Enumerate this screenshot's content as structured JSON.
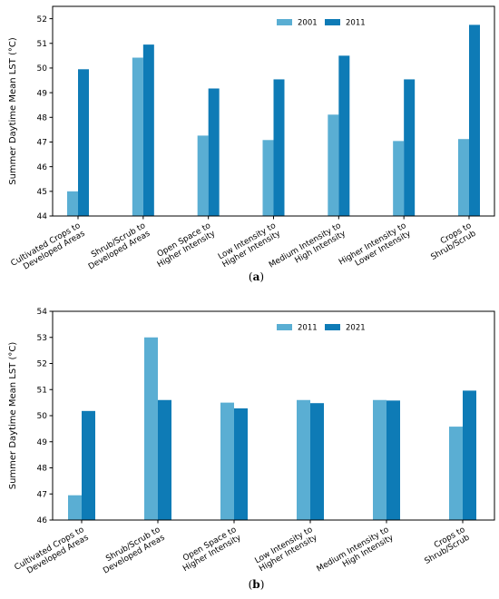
{
  "chart_data": [
    {
      "type": "bar",
      "panel_label": "a",
      "categories": [
        "Cultivated Crops to\nDeveloped Areas",
        "Shrub/Scrub to\nDeveloped Areas",
        "Open Space to\nHigher Intensity",
        "Low Intensity to\nHigher Intensity",
        "Medium Intensity to\nHigh Intensity",
        "Higher Intensity to\nLower Intensity",
        "Crops to\nShrub/Scrub"
      ],
      "series": [
        {
          "name": "2001",
          "color": "#5aaed3",
          "values": [
            45.0,
            50.42,
            47.26,
            47.08,
            48.11,
            47.04,
            47.12
          ]
        },
        {
          "name": "2011",
          "color": "#0e7bb6",
          "values": [
            49.95,
            50.95,
            49.17,
            49.54,
            50.5,
            49.54,
            51.75
          ]
        }
      ],
      "xlabel": "",
      "ylabel": "Summer Daytime Mean LST (°C)",
      "ylim": [
        44,
        52.5
      ],
      "yticks": [
        44,
        45,
        46,
        47,
        48,
        49,
        50,
        51,
        52
      ],
      "legend_position": "top-right",
      "grid": false
    },
    {
      "type": "bar",
      "panel_label": "b",
      "categories": [
        "Cultivated Crops to\nDeveloped Areas",
        "Shrub/Scrub to\nDeveloped Areas",
        "Open Space to\nHigher Intensity",
        "Low Intensity to\nHigher Intensity",
        "Medium Intensity to\nHigh Intensity",
        "Crops to\nShrub/Scrub"
      ],
      "series": [
        {
          "name": "2011",
          "color": "#5aaed3",
          "values": [
            46.95,
            53.0,
            50.5,
            50.6,
            50.6,
            49.58
          ]
        },
        {
          "name": "2021",
          "color": "#0e7bb6",
          "values": [
            50.18,
            50.6,
            50.28,
            50.48,
            50.58,
            50.96
          ]
        }
      ],
      "xlabel": "",
      "ylabel": "Summer Daytime Mean LST (°C)",
      "ylim": [
        46,
        54
      ],
      "yticks": [
        46,
        47,
        48,
        49,
        50,
        51,
        52,
        53,
        54
      ],
      "legend_position": "top-right",
      "grid": false
    }
  ]
}
